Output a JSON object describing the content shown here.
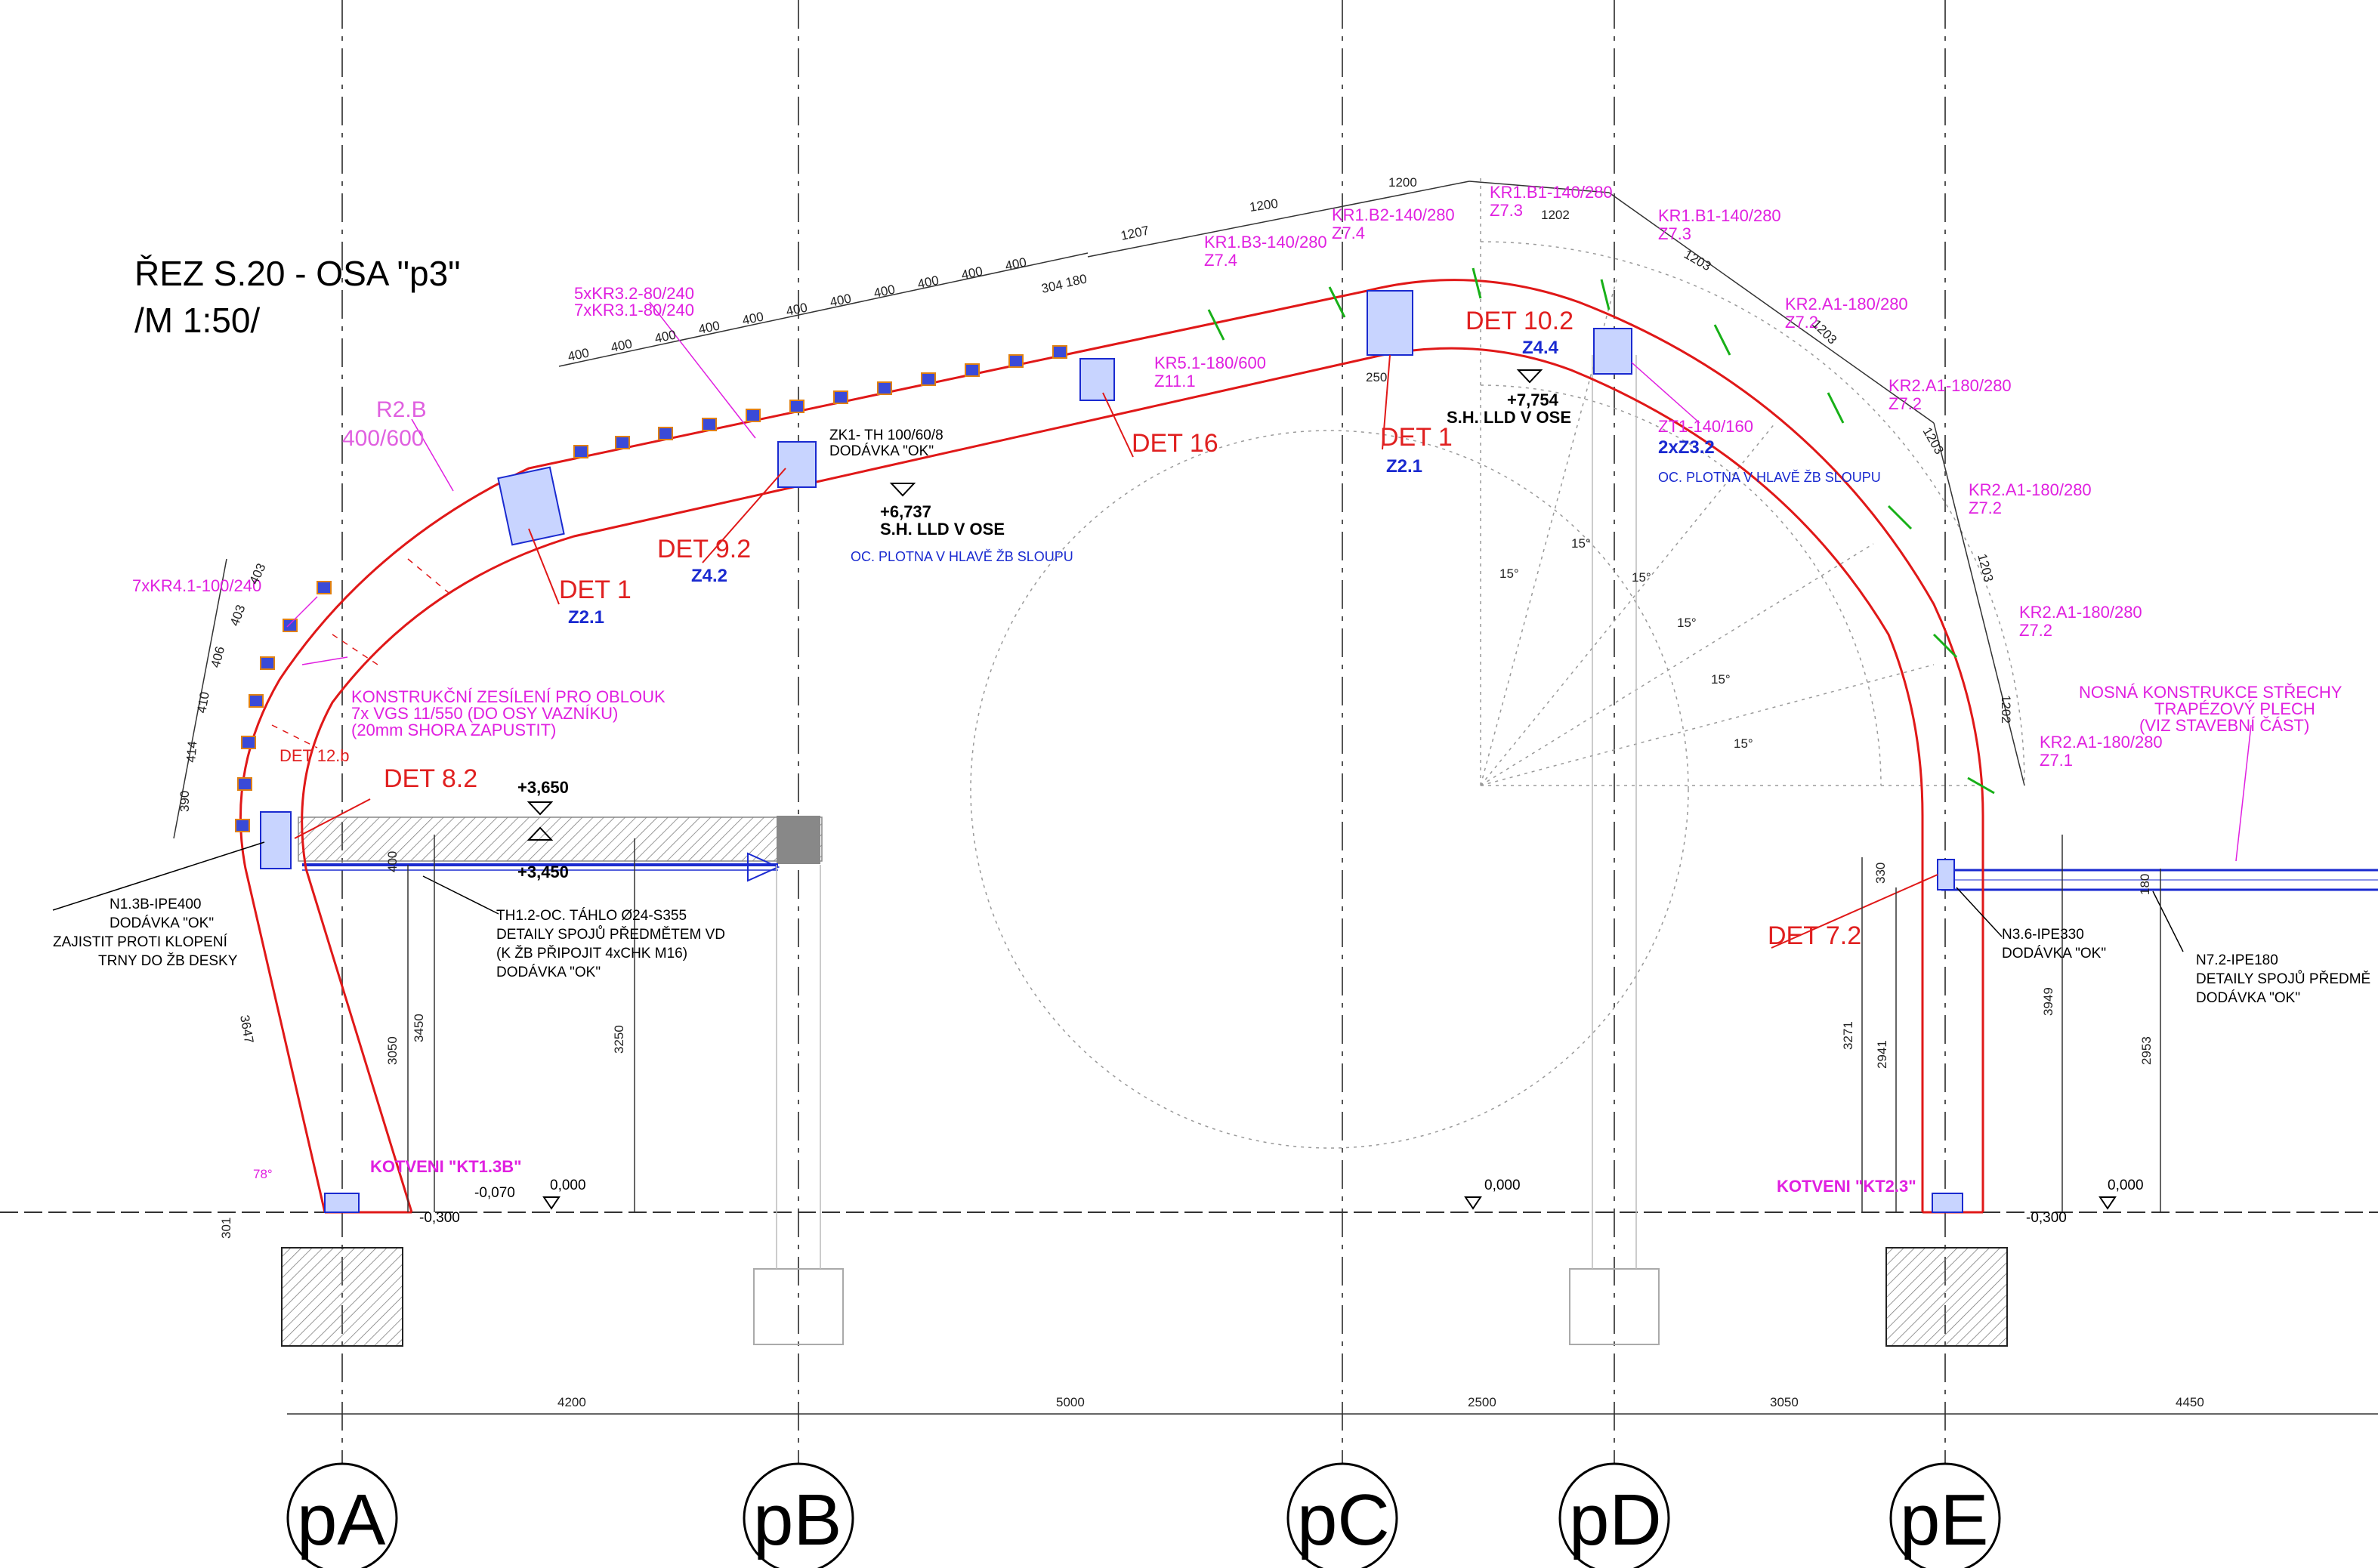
{
  "title": {
    "line1": "ŘEZ S.20 -  OSA \"p3\"",
    "line2": "/M 1:50/"
  },
  "axes": [
    {
      "label": "pA",
      "dim_to_next": "4200"
    },
    {
      "label": "pB",
      "dim_to_next": "5000"
    },
    {
      "label": "pC",
      "dim_to_next": "2500"
    },
    {
      "label": "pD",
      "dim_to_next": "3050"
    },
    {
      "label": "pE",
      "dim_to_next": "4450"
    }
  ],
  "levels": {
    "l_3650": "+3,650",
    "l_3450": "+3,450",
    "l_6737": "+6,737",
    "l_6737_note": "S.H. LLD V OSE",
    "l_7754": "+7,754",
    "l_7754_note": "S.H. LLD V OSE",
    "zero_a": "0,000",
    "zero_b": "0,000",
    "zero_c": "0,000",
    "minus070": "-0,070",
    "minus300a": "-0,300",
    "minus300b": "-0,300"
  },
  "details": {
    "det1_left": "DET 1",
    "det1_left_sub": "Z2.1",
    "det9_2": "DET 9.2",
    "det9_2_sub": "Z4.2",
    "det16": "DET 16",
    "det1_right": "DET 1",
    "det1_right_sub": "Z2.1",
    "det10_2": "DET 10.2",
    "det10_2_sub": "Z4.4",
    "det12b": "DET 12.b",
    "det8_2": "DET 8.2",
    "det7_2": "DET 7.2",
    "z3_2": "2xZ3.2"
  },
  "notes": {
    "r2b_1": "R2.B",
    "r2b_2": "400/600",
    "kr4": "7xKR4.1-100/240",
    "kr32_a": "5xKR3.2-80/240",
    "kr32_b": "7xKR3.1-80/240",
    "zesileni_1": "KONSTRUKČNÍ ZESÍLENÍ PRO OBLOUK",
    "zesileni_2": "7x VGS 11/550 (DO OSY VAZNÍKU)",
    "zesileni_3": "(20mm SHORA ZAPUSTIT)",
    "zk1_1": "ZK1-  TH 100/60/8",
    "zk1_2": "DODÁVKA \"OK\"",
    "plotna_left": "OC. PLOTNA V HLAVĚ ŽB SLOUPU",
    "plotna_right": "OC. PLOTNA V HLAVĚ ŽB SLOUPU",
    "kr51": "KR5.1-180/600",
    "z11": "Z11.1",
    "kr1b3": "KR1.B3-140/280",
    "z74a": "Z7.4",
    "kr1b2": "KR1.B2-140/280",
    "z74b": "Z7.4",
    "kr1b1a": "KR1.B1-140/280",
    "z73a": "Z7.3",
    "kr1b1b": "KR1.B1-140/280",
    "z73b": "Z7.3",
    "kr2a1_1": "KR2.A1-180/280",
    "z72_1": "Z7.2",
    "kr2a1_2": "KR2.A1-180/280",
    "z72_2": "Z7.2",
    "kr2a1_3": "KR2.A1-180/280",
    "z72_3": "Z7.2",
    "kr2a1_4": "KR2.A1-180/280",
    "z72_4": "Z7.2",
    "kr2a1_5": "KR2.A1-180/280",
    "z71": "Z7.1",
    "zt1": "ZT1-140/160",
    "nosna_1": "NOSNÁ KONSTRUKCE STŘECHY",
    "nosna_2": "TRAPÉZOVÝ PLECH",
    "nosna_3": "(VIZ STAVEBNÍ ČÁST)",
    "n13b_1": "N1.3B-IPE400",
    "n13b_2": "DODÁVKA \"OK\"",
    "n13b_3": "ZAJISTIT PROTI KLOPENÍ",
    "n13b_4": "TRNY DO ŽB DESKY",
    "th12_1": "TH1.2-OC. TÁHLO Ø24-S355",
    "th12_2": "DETAILY SPOJŮ PŘEDMĚTEM VD",
    "th12_3": "(K ŽB PŘIPOJIT 4xCHK M16)",
    "th12_4": "DODÁVKA \"OK\"",
    "n36_1": "N3.6-IPE330",
    "n36_2": "DODÁVKA \"OK\"",
    "n72_1": "N7.2-IPE180",
    "n72_2": "DETAILY SPOJŮ PŘEDMĚ",
    "n72_3": "DODÁVKA \"OK\"",
    "kotveni_a": "KOTVENI \"KT1.3B\"",
    "kotveni_e": "KOTVENI \"KT2.3\""
  },
  "dims": {
    "d400": "400",
    "d304": "304",
    "d180": "180",
    "d1207": "1207",
    "d1200a": "1200",
    "d1200b": "1200",
    "d1202a": "1202",
    "d1203a": "1203",
    "d1203b": "1203",
    "d1203c": "1203",
    "d1203d": "1203",
    "d1202b": "1202",
    "d403": "403",
    "d406": "406",
    "d410": "410",
    "d414": "414",
    "d390": "390",
    "d3647": "3647",
    "d3050": "3050",
    "d3450": "3450",
    "d3250": "3250",
    "d400v": "400",
    "d301": "301",
    "d250": "250",
    "d330": "330",
    "d3271": "3271",
    "d2941": "2941",
    "d3949": "3949",
    "d180v": "180",
    "d2953": "2953",
    "ang15": "15°",
    "ang78": "78°"
  },
  "colors": {
    "beam": "#e01818",
    "note": "#e020e0",
    "ref": "#1a2ad0",
    "connector": "#1a2ad0",
    "green": "#18b018",
    "construction": "#9a9a9a"
  }
}
